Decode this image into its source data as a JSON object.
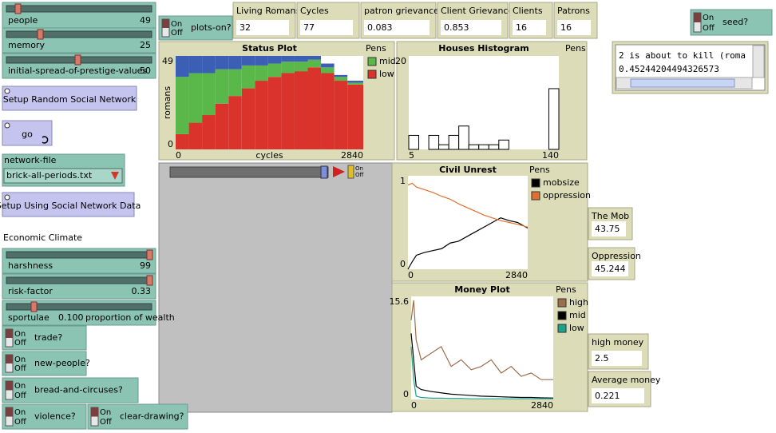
{
  "sliders": [
    {
      "label": "people",
      "value": 49
    },
    {
      "label": "memory",
      "value": 25
    },
    {
      "label": "initial-spread-of-prestige-values",
      "value": 50
    },
    {
      "label": "harshness",
      "value": 99
    },
    {
      "label": "risk-factor",
      "value": 0.33
    },
    {
      "label": "sportulae",
      "value": "0.100",
      "units": "proportion of wealth"
    }
  ],
  "switch_states": {
    "on": "On",
    "off": "Off"
  },
  "switches": [
    "plots-on?",
    "seed?",
    "trade?",
    "new-people?",
    "bread-and-circuses?",
    "violence?",
    "clear-drawing?"
  ],
  "buttons": [
    "Setup Random Social Network",
    "go",
    "Setup Using Social Network Data"
  ],
  "chooser": {
    "label": "network-file",
    "value": "brick-all-periods.txt"
  },
  "text_labels": [
    "Economic Climate"
  ],
  "monitors": [
    {
      "label": "Living Romans",
      "value": 32
    },
    {
      "label": "Cycles",
      "value": 77
    },
    {
      "label": "patron grievances",
      "value": 0.083
    },
    {
      "label": "Client Grievances",
      "value": 0.853
    },
    {
      "label": "Clients",
      "value": 16
    },
    {
      "label": "Patrons",
      "value": 16
    },
    {
      "label": "The Mob",
      "value": 43.75
    },
    {
      "label": "Oppression",
      "value": 45.244
    },
    {
      "label": "high money",
      "value": 2.5
    },
    {
      "label": "Average money",
      "value": 0.221
    }
  ],
  "output": [
    "2 is about to kill (roma",
    "0.45244204494326573"
  ],
  "chart_data": [
    {
      "type": "area",
      "title": "Status Plot",
      "legend_title": "Pens",
      "xlabel": "cycles",
      "ylabel": "romans",
      "x": [
        0,
        200,
        400,
        600,
        800,
        1000,
        1200,
        1400,
        1600,
        1800,
        2000,
        2200,
        2400,
        2600,
        2840
      ],
      "series": [
        {
          "color": "#3a5fb5",
          "values": [
            11,
            9,
            9,
            7,
            7,
            5,
            5,
            4,
            3,
            3,
            2,
            2,
            1,
            1,
            1
          ]
        },
        {
          "name": "mid",
          "color": "#5ab84a",
          "values": [
            30,
            26,
            22,
            18,
            14,
            12,
            8,
            7,
            6,
            5,
            4,
            3,
            2,
            1,
            0
          ]
        },
        {
          "name": "low",
          "color": "#d9332b",
          "values": [
            8,
            14,
            18,
            24,
            28,
            32,
            36,
            38,
            40,
            41,
            43,
            40,
            36,
            34,
            32
          ]
        }
      ],
      "xlim": [
        0,
        2840
      ],
      "ylim": [
        0,
        49
      ],
      "xticks": [
        0,
        2840
      ],
      "yticks": [
        0,
        49
      ]
    },
    {
      "type": "histogram",
      "title": "Houses Histogram",
      "legend_title": "Pens",
      "bins": [
        5,
        14,
        23,
        32,
        41,
        50,
        59,
        68,
        77,
        86,
        95,
        104,
        113,
        122,
        131,
        140
      ],
      "values": [
        3,
        0,
        3,
        1,
        3,
        5,
        1,
        1,
        1,
        2,
        0,
        0,
        0,
        0,
        13
      ],
      "color": "#000000",
      "xlim": [
        5,
        140
      ],
      "ylim": [
        0,
        20
      ],
      "xticks": [
        5,
        140
      ],
      "yticks": [
        20
      ]
    },
    {
      "type": "line",
      "title": "Civil Unrest",
      "legend_title": "Pens",
      "x": [
        0,
        100,
        200,
        400,
        600,
        800,
        1000,
        1200,
        1400,
        1600,
        1800,
        2000,
        2200,
        2400,
        2600,
        2840
      ],
      "series": [
        {
          "name": "mobsize",
          "color": "#000000",
          "values": [
            0,
            0.08,
            0.15,
            0.18,
            0.2,
            0.22,
            0.28,
            0.3,
            0.35,
            0.4,
            0.45,
            0.5,
            0.55,
            0.52,
            0.5,
            0.44
          ]
        },
        {
          "name": "oppression",
          "color": "#e07030",
          "values": [
            0.9,
            0.92,
            0.88,
            0.85,
            0.82,
            0.78,
            0.75,
            0.7,
            0.66,
            0.62,
            0.58,
            0.55,
            0.52,
            0.5,
            0.48,
            0.45
          ]
        }
      ],
      "xlim": [
        0,
        2840
      ],
      "ylim": [
        0,
        1
      ],
      "xticks": [
        0,
        2840
      ],
      "yticks": [
        0,
        1
      ]
    },
    {
      "type": "line",
      "title": "Money Plot",
      "legend_title": "Pens",
      "x": [
        0,
        50,
        100,
        200,
        400,
        600,
        800,
        1000,
        1200,
        1400,
        1600,
        1800,
        2000,
        2200,
        2400,
        2600,
        2840
      ],
      "series": [
        {
          "name": "high",
          "color": "#9d6e4e",
          "values": [
            12,
            15,
            9,
            6,
            7,
            8,
            5,
            6,
            4.5,
            5,
            6,
            4,
            5,
            3.5,
            4,
            3,
            3
          ]
        },
        {
          "name": "mid",
          "color": "#000000",
          "values": [
            10,
            6,
            2,
            1.5,
            1.2,
            1,
            0.8,
            0.7,
            0.6,
            0.5,
            0.45,
            0.4,
            0.35,
            0.3,
            0.3,
            0.25,
            0.22
          ]
        },
        {
          "name": "low",
          "color": "#1aa38a",
          "values": [
            8,
            3,
            0.5,
            0.3,
            0.2,
            0.2,
            0.15,
            0.15,
            0.1,
            0.1,
            0.1,
            0.1,
            0.1,
            0.1,
            0.1,
            0.1,
            0.1
          ]
        }
      ],
      "xlim": [
        0,
        2840
      ],
      "ylim": [
        0,
        15.6
      ],
      "xticks": [
        0,
        2840
      ],
      "yticks": [
        0,
        15.6
      ]
    }
  ]
}
